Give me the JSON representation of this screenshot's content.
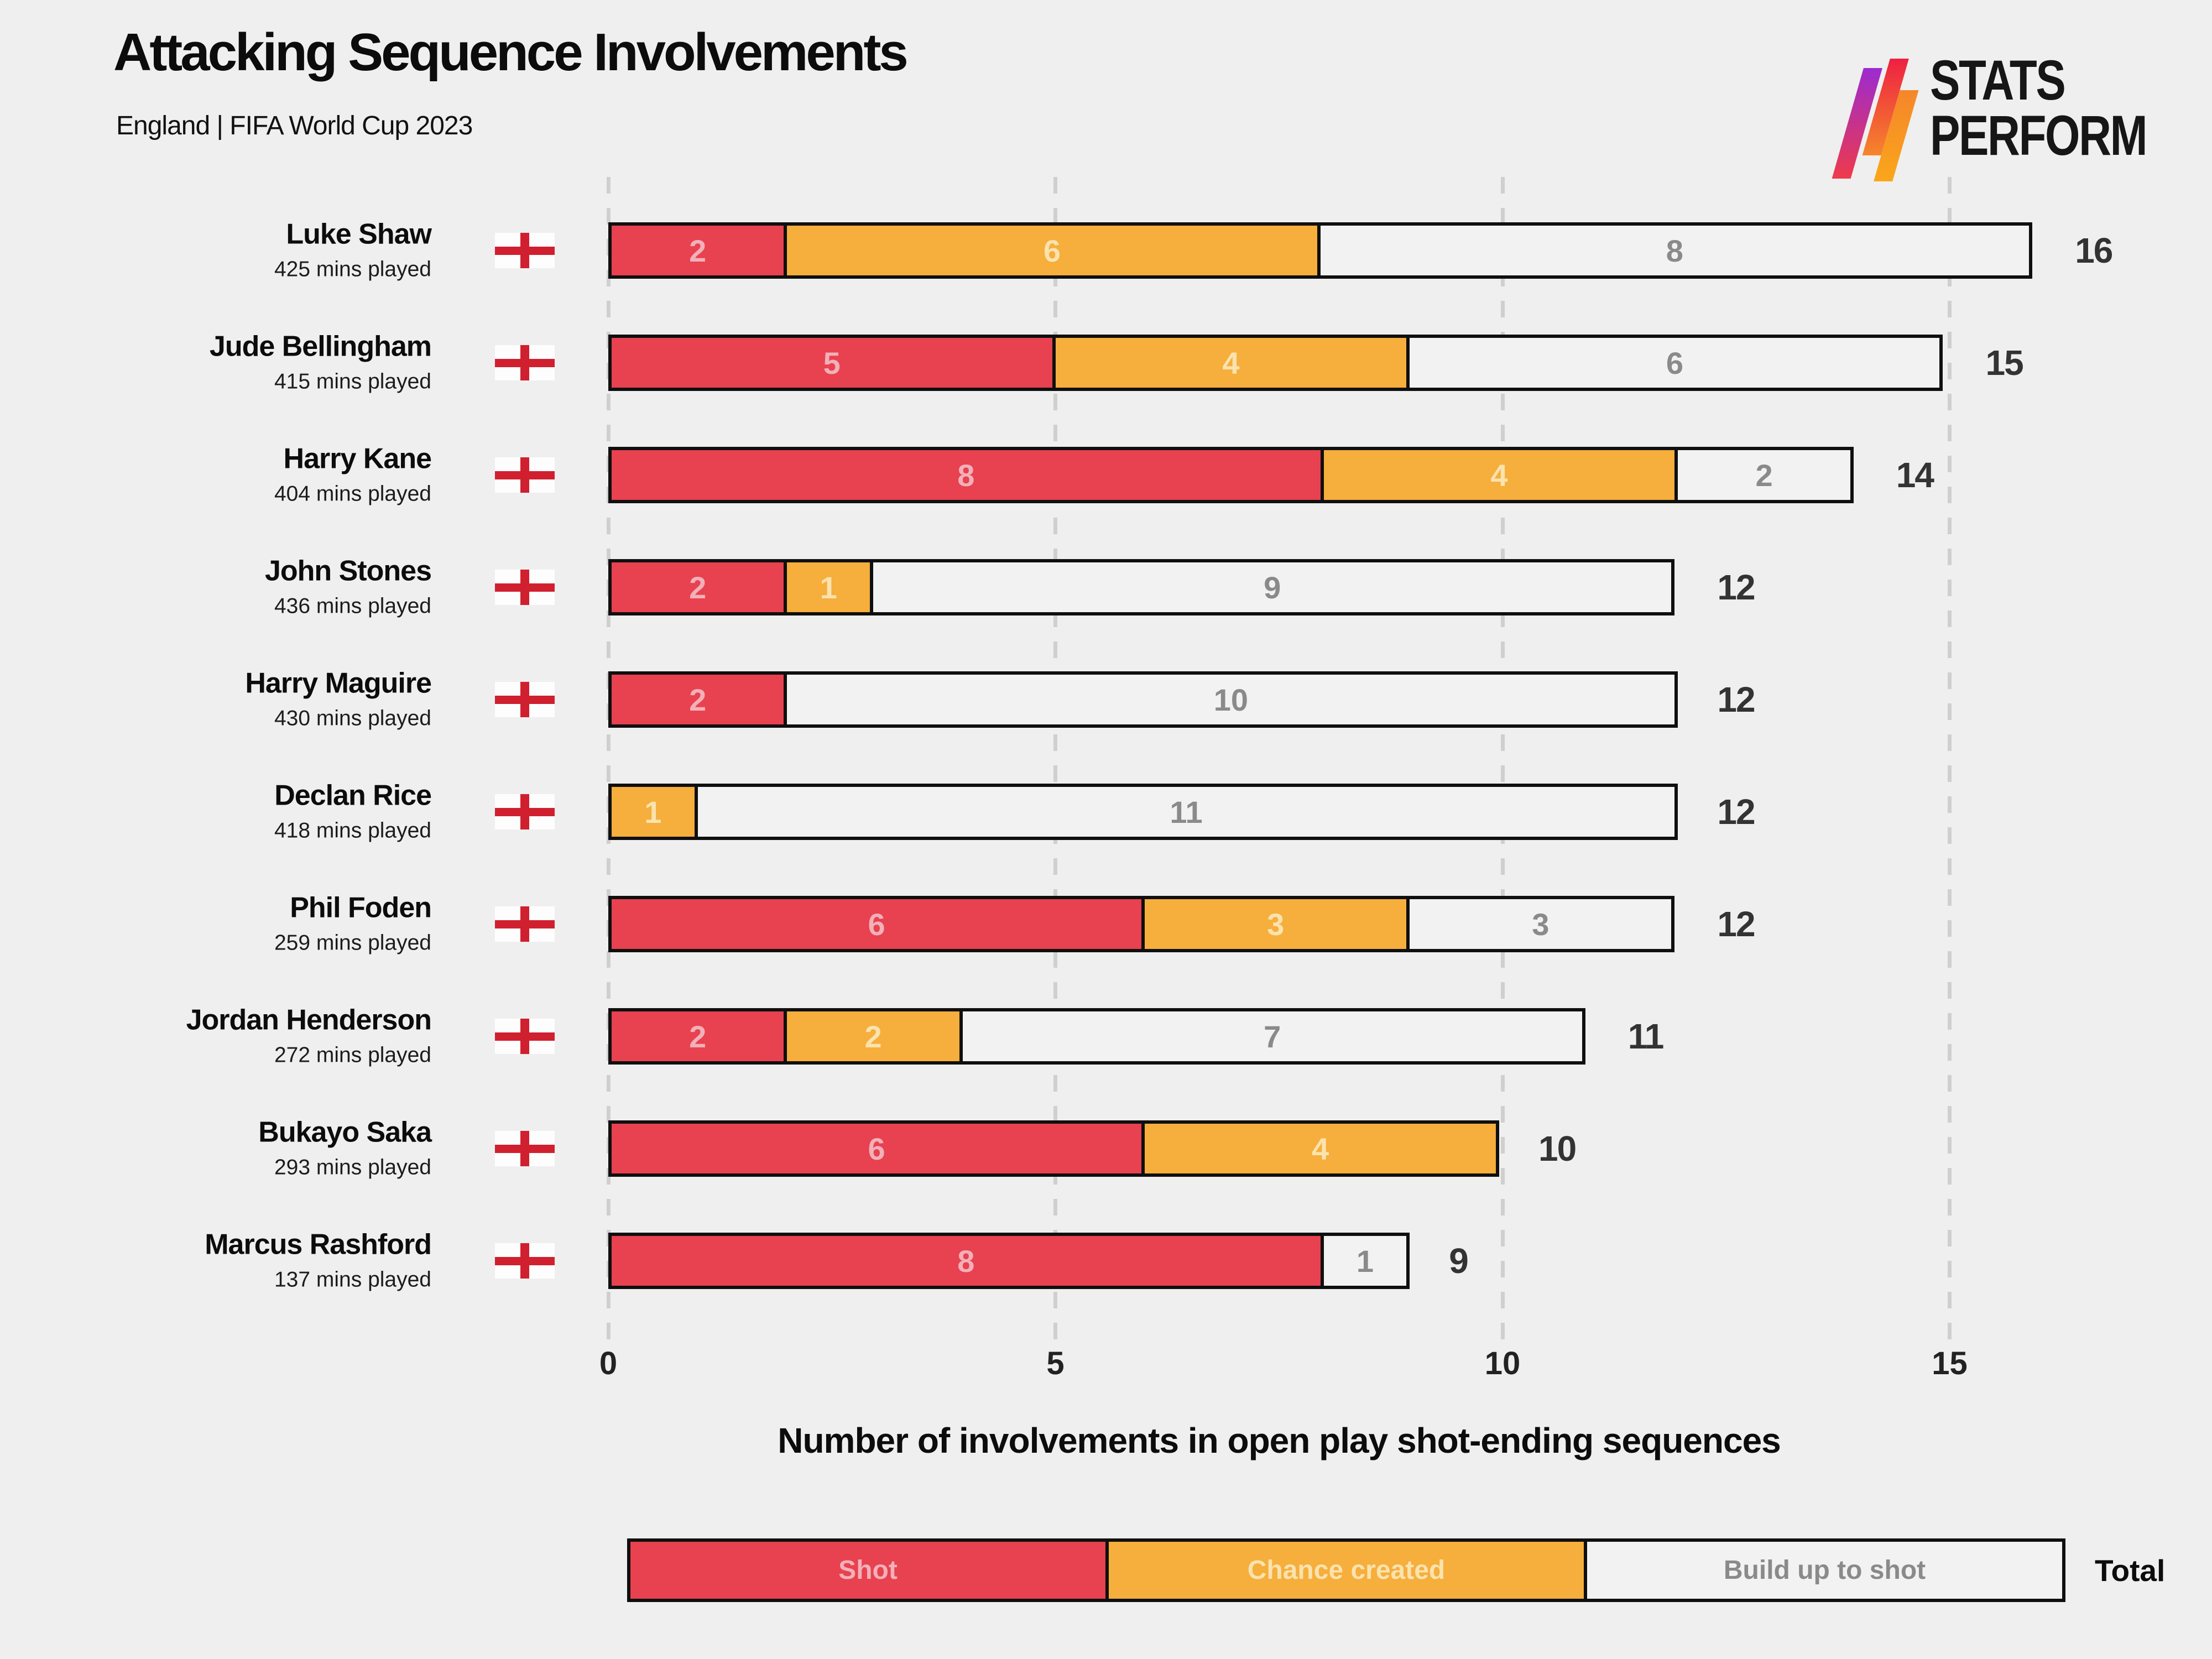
{
  "header": {
    "title": "Attacking Sequence Involvements",
    "subtitle": "England | FIFA World Cup 2023"
  },
  "logo": {
    "line1": "STATS",
    "line2": "PERFORM"
  },
  "colors": {
    "background": "#efefef",
    "bar_border": "#0f0f0f",
    "gridline": "#cfcfcf",
    "flag_cross": "#d01f2f",
    "total_text": "#333333",
    "logo_gradient_1": [
      "#9c2bd0",
      "#ef3a4a"
    ],
    "logo_gradient_2": [
      "#ee2043",
      "#f5862b"
    ],
    "logo_gradient_3": [
      "#f5862b",
      "#faa61a"
    ]
  },
  "series": [
    {
      "key": "shot",
      "label": "Shot",
      "fill": "#e8414f",
      "value_color": "#f2b0b9"
    },
    {
      "key": "chance",
      "label": "Chance created",
      "fill": "#f6ae3c",
      "value_color": "#fbe3ae"
    },
    {
      "key": "buildup",
      "label": "Build up to shot",
      "fill": "#f2f2f2",
      "value_color": "#8a8a8a"
    }
  ],
  "legend": {
    "total_label": "Total"
  },
  "chart_data": {
    "type": "bar",
    "orientation": "horizontal",
    "stacked": true,
    "title": "Attacking Sequence Involvements",
    "subtitle": "England | FIFA World Cup 2023",
    "xlabel": "Number of involvements in open play shot-ending sequences",
    "xticks": [
      0,
      5,
      10,
      15
    ],
    "xlim": [
      0,
      16
    ],
    "grid": "dashed-vertical",
    "legend_entries": [
      "Shot",
      "Chance created",
      "Build up to shot"
    ],
    "players": [
      {
        "name": "Luke Shaw",
        "mins": "425 mins played",
        "shot": 2,
        "chance": 6,
        "buildup": 8,
        "total": 16
      },
      {
        "name": "Jude Bellingham",
        "mins": "415 mins played",
        "shot": 5,
        "chance": 4,
        "buildup": 6,
        "total": 15
      },
      {
        "name": "Harry Kane",
        "mins": "404 mins played",
        "shot": 8,
        "chance": 4,
        "buildup": 2,
        "total": 14
      },
      {
        "name": "John Stones",
        "mins": "436 mins played",
        "shot": 2,
        "chance": 1,
        "buildup": 9,
        "total": 12
      },
      {
        "name": "Harry Maguire",
        "mins": "430 mins played",
        "shot": 2,
        "chance": 0,
        "buildup": 10,
        "total": 12
      },
      {
        "name": "Declan Rice",
        "mins": "418 mins played",
        "shot": 0,
        "chance": 1,
        "buildup": 11,
        "total": 12
      },
      {
        "name": "Phil Foden",
        "mins": "259 mins played",
        "shot": 6,
        "chance": 3,
        "buildup": 3,
        "total": 12
      },
      {
        "name": "Jordan Henderson",
        "mins": "272 mins played",
        "shot": 2,
        "chance": 2,
        "buildup": 7,
        "total": 11
      },
      {
        "name": "Bukayo Saka",
        "mins": "293 mins played",
        "shot": 6,
        "chance": 4,
        "buildup": 0,
        "total": 10
      },
      {
        "name": "Marcus Rashford",
        "mins": "137 mins played",
        "shot": 8,
        "chance": 0,
        "buildup": 1,
        "total": 9
      }
    ]
  }
}
